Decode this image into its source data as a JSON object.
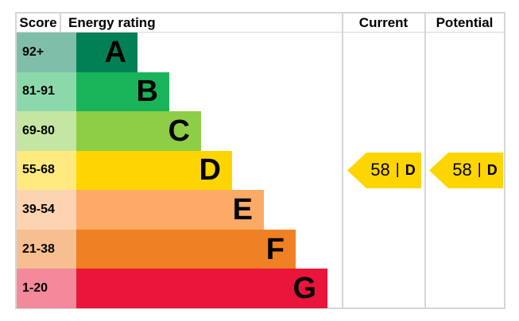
{
  "header": {
    "score": "Score",
    "energy_rating": "Energy rating",
    "current": "Current",
    "potential": "Potential"
  },
  "bands": [
    {
      "score_range": "92+",
      "letter": "A",
      "color": "#008054",
      "score_bg": "#7fbfa9"
    },
    {
      "score_range": "81-91",
      "letter": "B",
      "color": "#19b459",
      "score_bg": "#8bd9ab"
    },
    {
      "score_range": "69-80",
      "letter": "C",
      "color": "#8dce46",
      "score_bg": "#c5e6a2"
    },
    {
      "score_range": "55-68",
      "letter": "D",
      "color": "#ffd500",
      "score_bg": "#ffea7f"
    },
    {
      "score_range": "39-54",
      "letter": "E",
      "color": "#fcaa65",
      "score_bg": "#fdd4b1"
    },
    {
      "score_range": "21-38",
      "letter": "F",
      "color": "#ef8023",
      "score_bg": "#f7bf90"
    },
    {
      "score_range": "1-20",
      "letter": "G",
      "color": "#e9153b",
      "score_bg": "#f4899c"
    }
  ],
  "markers": {
    "current": {
      "value": "58",
      "separator": "|",
      "letter": "D",
      "band_letter": "D",
      "color": "#ffd500"
    },
    "potential": {
      "value": "58",
      "separator": "|",
      "letter": "D",
      "band_letter": "D",
      "color": "#ffd500"
    }
  },
  "chart_data": {
    "type": "bar",
    "title": "",
    "columns": [
      "Score",
      "Energy rating",
      "Current",
      "Potential"
    ],
    "categories": [
      "A",
      "B",
      "C",
      "D",
      "E",
      "F",
      "G"
    ],
    "score_ranges": [
      "92+",
      "81-91",
      "69-80",
      "55-68",
      "39-54",
      "21-38",
      "1-20"
    ],
    "band_colors": [
      "#008054",
      "#19b459",
      "#8dce46",
      "#ffd500",
      "#fcaa65",
      "#ef8023",
      "#e9153b"
    ],
    "score_cell_colors": [
      "#7fbfa9",
      "#8bd9ab",
      "#c5e6a2",
      "#ffea7f",
      "#fdd4b1",
      "#f7bf90",
      "#f4899c"
    ],
    "rule_color": "#d6d6d6",
    "current": {
      "score": 58,
      "rating": "D"
    },
    "potential": {
      "score": 58,
      "rating": "D"
    },
    "legend_position": "none",
    "grid": false
  }
}
